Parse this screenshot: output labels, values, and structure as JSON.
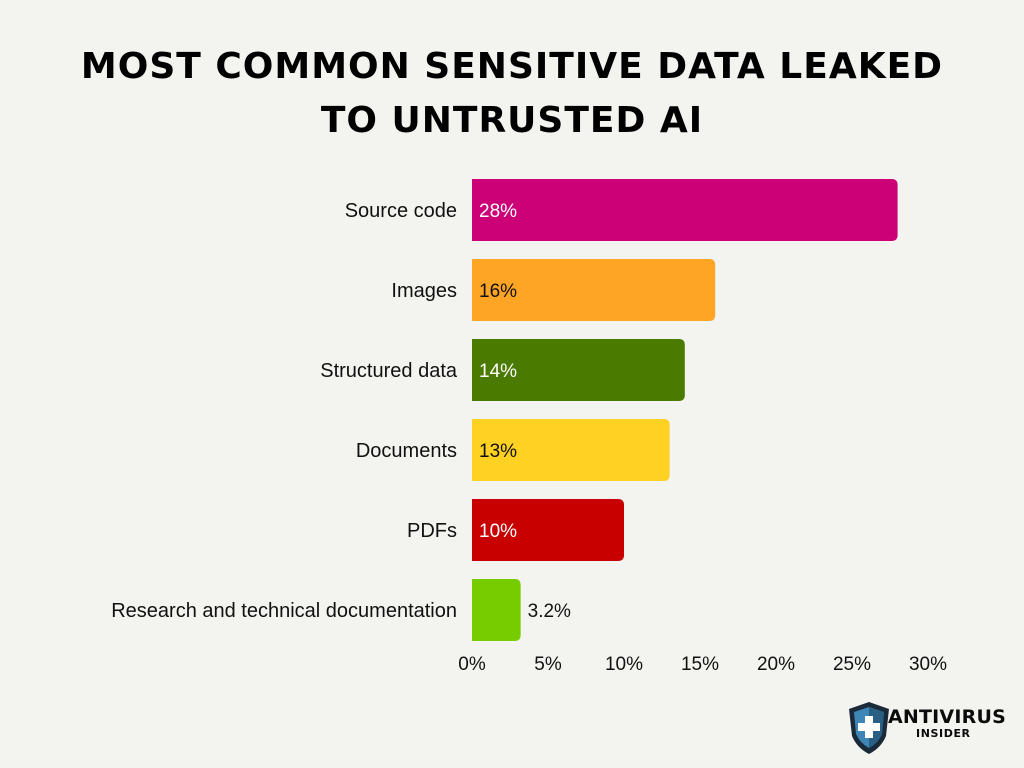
{
  "chart_data": {
    "type": "bar",
    "orientation": "horizontal",
    "title": "Most common sensitive data leaked to untrusted AI",
    "title_lines": [
      "Most common sensitive data leaked",
      "to untrusted AI"
    ],
    "categories": [
      "Source code",
      "Images",
      "Structured data",
      "Documents",
      "PDFs",
      "Research and technical documentation"
    ],
    "values": [
      28,
      16,
      14,
      13,
      10,
      3.2
    ],
    "value_labels": [
      "28%",
      "16%",
      "14%",
      "13%",
      "10%",
      "3.2%"
    ],
    "colors": [
      "#cc0077",
      "#fea525",
      "#4a7a00",
      "#fed122",
      "#c90000",
      "#77cc00"
    ],
    "label_colors": [
      "#ffffff",
      "#111111",
      "#ffffff",
      "#111111",
      "#ffffff",
      "#111111"
    ],
    "xlim": [
      0,
      30
    ],
    "x_ticks": [
      0,
      5,
      10,
      15,
      20,
      25,
      30
    ],
    "x_tick_labels": [
      "0%",
      "5%",
      "10%",
      "15%",
      "20%",
      "25%",
      "30%"
    ],
    "grid": false,
    "legend": "none"
  },
  "logo": {
    "brand": "ANTIVIRUS",
    "sub": "INSIDER",
    "icon": "shield-plus-icon"
  },
  "colors": {
    "background": "#f3f3ef",
    "title": "#000000"
  }
}
